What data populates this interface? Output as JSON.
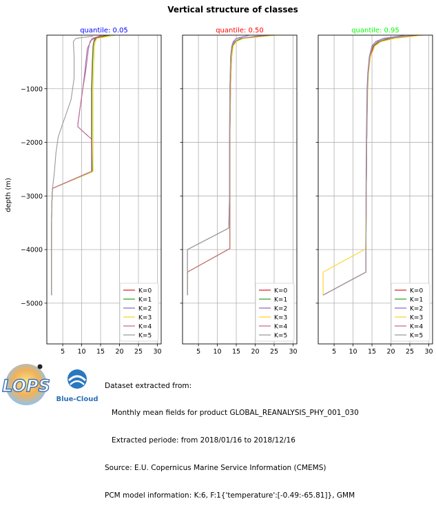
{
  "figure_title": "Vertical structure of classes",
  "ylabel": "depth (m)",
  "info_lines": [
    "Dataset extracted from:",
    "   Monthly mean fields for product GLOBAL_REANALYSIS_PHY_001_030",
    "   Extracted periode: from 2018/01/16 to 2018/12/16",
    "Source: E.U. Copernicus Marine Service Information (CMEMS)",
    "PCM model information: K:6, F:1{'temperature':[-0.49:-65.81]}, GMM"
  ],
  "logos": {
    "lops": "LOPS",
    "bluecloud": "Blue-Cloud"
  },
  "chart_data": [
    {
      "type": "line",
      "title": "quantile: 0.05",
      "title_color": "#0000ff",
      "xlabel": "",
      "ylabel": "depth (m)",
      "xlim": [
        0.8,
        31.0
      ],
      "ylim": [
        -5760,
        0
      ],
      "xticks": [
        5,
        10,
        15,
        20,
        25,
        30
      ],
      "yticks": [
        -1000,
        -2000,
        -3000,
        -4000,
        -5000
      ],
      "ytick_labels": [
        "−1000",
        "−2000",
        "−3000",
        "−4000",
        "−5000"
      ],
      "grid": true,
      "legend": "lower-right",
      "series": [
        {
          "name": "K=0",
          "color": "#d62728",
          "points": [
            [
              16.5,
              0
            ],
            [
              13.5,
              -60
            ],
            [
              13.2,
              -120
            ],
            [
              13.0,
              -200
            ],
            [
              12.8,
              -500
            ],
            [
              12.6,
              -1000
            ],
            [
              12.6,
              -1500
            ],
            [
              12.6,
              -2000
            ],
            [
              12.7,
              -2540
            ],
            [
              2.3,
              -2860
            ],
            [
              2.1,
              -3200
            ],
            [
              2.0,
              -4000
            ],
            [
              2.0,
              -4850
            ]
          ]
        },
        {
          "name": "K=1",
          "color": "#2ca02c",
          "points": [
            [
              17.5,
              0
            ],
            [
              13.8,
              -60
            ],
            [
              13.3,
              -120
            ],
            [
              13.1,
              -200
            ],
            [
              12.9,
              -500
            ],
            [
              12.7,
              -1000
            ],
            [
              12.7,
              -1500
            ],
            [
              12.7,
              -2000
            ],
            [
              12.8,
              -2550
            ],
            [
              2.3,
              -2860
            ],
            [
              2.1,
              -3200
            ],
            [
              2.0,
              -4000
            ],
            [
              2.0,
              -4850
            ]
          ]
        },
        {
          "name": "K=2",
          "color": "#9467bd",
          "points": [
            [
              15.0,
              -10
            ],
            [
              13.5,
              -50
            ],
            [
              12.5,
              -100
            ],
            [
              11.5,
              -250
            ],
            [
              10.8,
              -700
            ],
            [
              10.3,
              -1000
            ],
            [
              9.5,
              -1400
            ],
            [
              9.0,
              -1650
            ],
            [
              9.0,
              -1710
            ],
            [
              12.6,
              -1940
            ],
            [
              12.6,
              -2200
            ],
            [
              12.6,
              -2540
            ],
            [
              2.3,
              -2860
            ],
            [
              2.1,
              -3200
            ],
            [
              2.0,
              -4000
            ],
            [
              2.0,
              -4850
            ]
          ]
        },
        {
          "name": "K=3",
          "color": "#ffd21f",
          "points": [
            [
              19.0,
              0
            ],
            [
              14.0,
              -60
            ],
            [
              13.6,
              -120
            ],
            [
              13.4,
              -200
            ],
            [
              13.2,
              -500
            ],
            [
              13.0,
              -1000
            ],
            [
              13.0,
              -1500
            ],
            [
              13.0,
              -2000
            ],
            [
              13.0,
              -2540
            ],
            [
              2.3,
              -2860
            ],
            [
              2.1,
              -3200
            ],
            [
              2.0,
              -4000
            ],
            [
              2.0,
              -4850
            ]
          ]
        },
        {
          "name": "K=4",
          "color": "#c26b8c",
          "points": [
            [
              15.5,
              0
            ],
            [
              12.8,
              -60
            ],
            [
              12.2,
              -120
            ],
            [
              11.8,
              -250
            ],
            [
              11.0,
              -700
            ],
            [
              10.3,
              -1000
            ],
            [
              9.5,
              -1400
            ],
            [
              9.0,
              -1650
            ],
            [
              9.0,
              -1710
            ],
            [
              12.6,
              -1940
            ],
            [
              12.6,
              -2200
            ],
            [
              12.6,
              -2540
            ],
            [
              2.3,
              -2860
            ],
            [
              2.1,
              -3200
            ],
            [
              2.0,
              -4000
            ],
            [
              2.0,
              -4850
            ]
          ]
        },
        {
          "name": "K=5",
          "color": "#999999",
          "points": [
            [
              13.0,
              -20
            ],
            [
              8.5,
              -60
            ],
            [
              7.8,
              -120
            ],
            [
              8.0,
              -400
            ],
            [
              8.0,
              -800
            ],
            [
              7.2,
              -1200
            ],
            [
              6.0,
              -1450
            ],
            [
              5.0,
              -1650
            ],
            [
              3.8,
              -1900
            ],
            [
              3.2,
              -2200
            ],
            [
              2.8,
              -2550
            ],
            [
              2.3,
              -2860
            ],
            [
              2.1,
              -3200
            ],
            [
              2.0,
              -4000
            ],
            [
              2.0,
              -4850
            ]
          ]
        }
      ]
    },
    {
      "type": "line",
      "title": "quantile: 0.50",
      "title_color": "#ff0000",
      "xlabel": "",
      "ylabel": "",
      "xlim": [
        0.8,
        31.0
      ],
      "ylim": [
        -5760,
        0
      ],
      "xticks": [
        5,
        10,
        15,
        20,
        25,
        30
      ],
      "yticks": [
        -1000,
        -2000,
        -3000,
        -4000,
        -5000
      ],
      "ytick_labels": [],
      "grid": true,
      "legend": "lower-right",
      "series": [
        {
          "name": "K=0",
          "color": "#d62728",
          "points": [
            [
              24.5,
              0
            ],
            [
              16.0,
              -60
            ],
            [
              14.5,
              -120
            ],
            [
              13.9,
              -200
            ],
            [
              13.6,
              -400
            ],
            [
              13.5,
              -700
            ],
            [
              13.4,
              -1000
            ],
            [
              13.3,
              -2000
            ],
            [
              13.3,
              -3000
            ],
            [
              13.3,
              -3980
            ],
            [
              2.1,
              -4420
            ],
            [
              2.1,
              -4850
            ]
          ]
        },
        {
          "name": "K=1",
          "color": "#2ca02c",
          "points": [
            [
              25.0,
              0
            ],
            [
              16.5,
              -60
            ],
            [
              14.8,
              -120
            ],
            [
              14.1,
              -200
            ],
            [
              13.8,
              -400
            ],
            [
              13.6,
              -700
            ],
            [
              13.5,
              -1000
            ],
            [
              13.3,
              -2000
            ],
            [
              13.3,
              -3000
            ],
            [
              13.3,
              -3980
            ],
            [
              2.1,
              -4420
            ],
            [
              2.1,
              -4850
            ]
          ]
        },
        {
          "name": "K=2",
          "color": "#9467bd",
          "points": [
            [
              18.5,
              0
            ],
            [
              15.0,
              -60
            ],
            [
              14.2,
              -120
            ],
            [
              13.8,
              -200
            ],
            [
              13.5,
              -400
            ],
            [
              13.4,
              -700
            ],
            [
              13.3,
              -1000
            ],
            [
              13.2,
              -2000
            ],
            [
              13.2,
              -3000
            ],
            [
              13.0,
              -3600
            ],
            [
              2.1,
              -4000
            ],
            [
              2.1,
              -4850
            ]
          ]
        },
        {
          "name": "K=3",
          "color": "#ffd21f",
          "points": [
            [
              25.5,
              0
            ],
            [
              17.0,
              -60
            ],
            [
              15.0,
              -120
            ],
            [
              14.2,
              -200
            ],
            [
              13.8,
              -400
            ],
            [
              13.6,
              -700
            ],
            [
              13.5,
              -1000
            ],
            [
              13.3,
              -2000
            ],
            [
              13.3,
              -3000
            ],
            [
              13.3,
              -3980
            ],
            [
              2.1,
              -4420
            ],
            [
              2.1,
              -4850
            ]
          ]
        },
        {
          "name": "K=4",
          "color": "#c26b8c",
          "points": [
            [
              24.0,
              0
            ],
            [
              16.0,
              -60
            ],
            [
              14.6,
              -120
            ],
            [
              13.9,
              -200
            ],
            [
              13.6,
              -400
            ],
            [
              13.5,
              -700
            ],
            [
              13.4,
              -1000
            ],
            [
              13.3,
              -2000
            ],
            [
              13.3,
              -3000
            ],
            [
              13.3,
              -3980
            ],
            [
              2.1,
              -4420
            ],
            [
              2.1,
              -4850
            ]
          ]
        },
        {
          "name": "K=5",
          "color": "#999999",
          "points": [
            [
              22.0,
              0
            ],
            [
              16.0,
              -60
            ],
            [
              14.5,
              -120
            ],
            [
              13.8,
              -200
            ],
            [
              13.5,
              -400
            ],
            [
              13.4,
              -700
            ],
            [
              13.3,
              -1000
            ],
            [
              13.2,
              -2000
            ],
            [
              13.2,
              -3000
            ],
            [
              13.0,
              -3600
            ],
            [
              2.1,
              -4000
            ],
            [
              2.1,
              -4850
            ]
          ]
        }
      ]
    },
    {
      "type": "line",
      "title": "quantile: 0.95",
      "title_color": "#00ff00",
      "xlabel": "",
      "ylabel": "",
      "xlim": [
        0.8,
        31.0
      ],
      "ylim": [
        -5760,
        0
      ],
      "xticks": [
        5,
        10,
        15,
        20,
        25,
        30
      ],
      "yticks": [
        -1000,
        -2000,
        -3000,
        -4000,
        -5000
      ],
      "ytick_labels": [],
      "grid": true,
      "legend": "lower-right",
      "series": [
        {
          "name": "K=0",
          "color": "#d62728",
          "points": [
            [
              28.0,
              0
            ],
            [
              20.0,
              -60
            ],
            [
              17.0,
              -120
            ],
            [
              15.5,
              -200
            ],
            [
              14.5,
              -400
            ],
            [
              14.0,
              -700
            ],
            [
              13.8,
              -1000
            ],
            [
              13.6,
              -2000
            ],
            [
              13.5,
              -3000
            ],
            [
              13.4,
              -3980
            ],
            [
              13.4,
              -4420
            ],
            [
              2.1,
              -4850
            ]
          ]
        },
        {
          "name": "K=1",
          "color": "#2ca02c",
          "points": [
            [
              27.5,
              0
            ],
            [
              19.5,
              -60
            ],
            [
              16.8,
              -120
            ],
            [
              15.3,
              -200
            ],
            [
              14.4,
              -400
            ],
            [
              14.0,
              -700
            ],
            [
              13.8,
              -1000
            ],
            [
              13.6,
              -2000
            ],
            [
              13.5,
              -3000
            ],
            [
              13.4,
              -3980
            ],
            [
              13.4,
              -4420
            ],
            [
              2.1,
              -4850
            ]
          ]
        },
        {
          "name": "K=2",
          "color": "#9467bd",
          "points": [
            [
              24.0,
              0
            ],
            [
              18.0,
              -60
            ],
            [
              16.0,
              -120
            ],
            [
              15.0,
              -200
            ],
            [
              14.3,
              -400
            ],
            [
              13.9,
              -700
            ],
            [
              13.7,
              -1000
            ],
            [
              13.5,
              -2000
            ],
            [
              13.4,
              -3000
            ],
            [
              13.4,
              -3980
            ],
            [
              13.4,
              -4420
            ],
            [
              2.1,
              -4850
            ]
          ]
        },
        {
          "name": "K=3",
          "color": "#ffd21f",
          "points": [
            [
              28.5,
              0
            ],
            [
              21.0,
              -60
            ],
            [
              17.5,
              -120
            ],
            [
              15.8,
              -200
            ],
            [
              14.6,
              -400
            ],
            [
              14.1,
              -700
            ],
            [
              13.9,
              -1000
            ],
            [
              13.6,
              -2000
            ],
            [
              13.5,
              -3000
            ],
            [
              13.3,
              -3990
            ],
            [
              2.1,
              -4420
            ],
            [
              2.1,
              -4850
            ]
          ]
        },
        {
          "name": "K=4",
          "color": "#c26b8c",
          "points": [
            [
              27.0,
              0
            ],
            [
              19.0,
              -60
            ],
            [
              16.5,
              -120
            ],
            [
              15.2,
              -200
            ],
            [
              14.4,
              -400
            ],
            [
              14.0,
              -700
            ],
            [
              13.8,
              -1000
            ],
            [
              13.6,
              -2000
            ],
            [
              13.5,
              -3000
            ],
            [
              13.4,
              -3980
            ],
            [
              13.4,
              -4420
            ],
            [
              2.1,
              -4850
            ]
          ]
        },
        {
          "name": "K=5",
          "color": "#999999",
          "points": [
            [
              26.0,
              0
            ],
            [
              19.0,
              -60
            ],
            [
              16.5,
              -120
            ],
            [
              15.2,
              -200
            ],
            [
              14.4,
              -400
            ],
            [
              14.0,
              -700
            ],
            [
              13.8,
              -1000
            ],
            [
              13.6,
              -2000
            ],
            [
              13.5,
              -3000
            ],
            [
              13.4,
              -3980
            ],
            [
              13.4,
              -4420
            ],
            [
              2.1,
              -4850
            ]
          ]
        }
      ]
    }
  ]
}
